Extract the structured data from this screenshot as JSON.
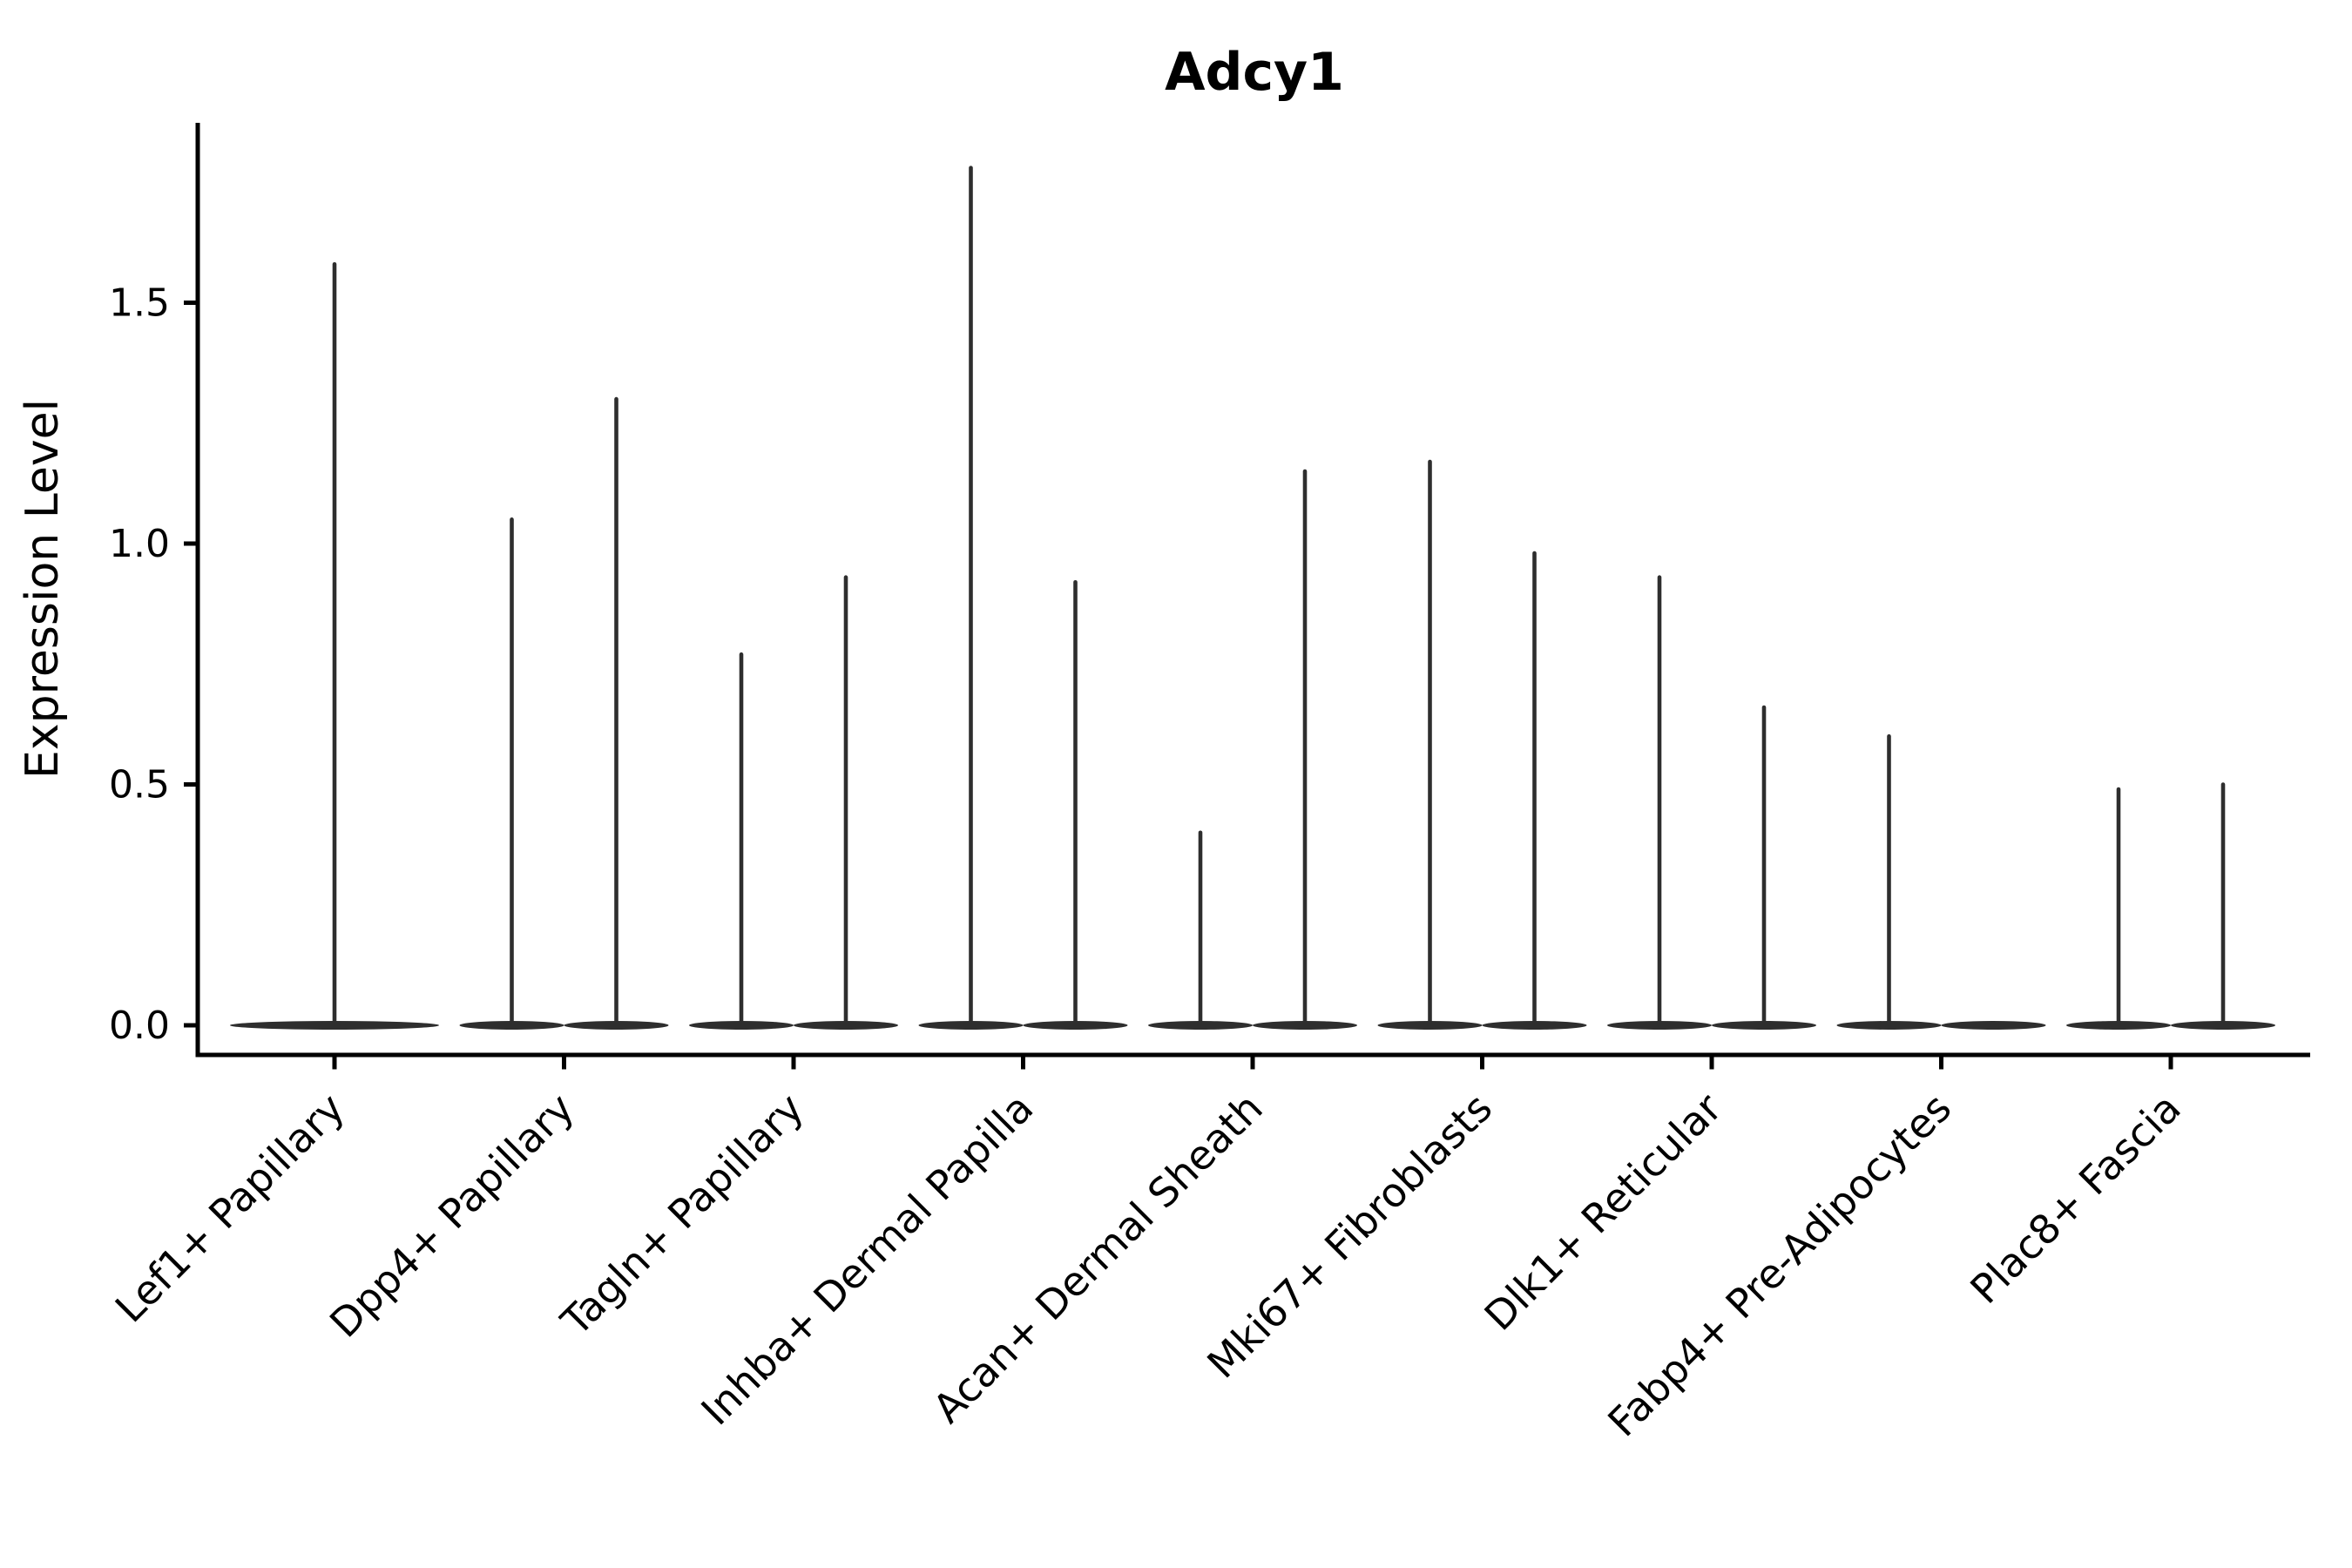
{
  "chart_data": {
    "type": "violin",
    "title": "Adcy1",
    "xlabel": "",
    "ylabel": "Expression Level",
    "yticks": [
      0.0,
      0.5,
      1.0,
      1.5
    ],
    "ytick_labels": [
      "0.0",
      "0.5",
      "1.0",
      "1.5"
    ],
    "ylim": [
      -0.06,
      1.87
    ],
    "grid": false,
    "legend": null,
    "x_tick_rotation": 45,
    "colors": {
      "violin": "#2e2e2e",
      "axis": "#000000",
      "background": "#ffffff"
    },
    "categories": [
      "Lef1+ Papillary",
      "Dpp4+ Papillary",
      "Tagln+ Papillary",
      "Inhba+ Dermal Papilla",
      "Acan+ Dermal Sheath",
      "Mki67+ Fibroblasts",
      "Dlk1+ Reticular",
      "Fabp4+ Pre-Adipocytes",
      "Plac8+ Fascia"
    ],
    "series": [
      {
        "category": "Lef1+ Papillary",
        "violins": [
          {
            "position": "center",
            "span": "full",
            "peak": 1.58
          }
        ]
      },
      {
        "category": "Dpp4+ Papillary",
        "violins": [
          {
            "position": "left",
            "span": "half",
            "peak": 1.05
          },
          {
            "position": "right",
            "span": "half",
            "peak": 1.3
          }
        ]
      },
      {
        "category": "Tagln+ Papillary",
        "violins": [
          {
            "position": "left",
            "span": "half",
            "peak": 0.77
          },
          {
            "position": "right",
            "span": "half",
            "peak": 0.93
          }
        ]
      },
      {
        "category": "Inhba+ Dermal Papilla",
        "violins": [
          {
            "position": "left",
            "span": "half",
            "peak": 1.78
          },
          {
            "position": "right",
            "span": "half",
            "peak": 0.92
          }
        ]
      },
      {
        "category": "Acan+ Dermal Sheath",
        "violins": [
          {
            "position": "left",
            "span": "half",
            "peak": 0.4
          },
          {
            "position": "right",
            "span": "half",
            "peak": 1.15
          }
        ]
      },
      {
        "category": "Mki67+ Fibroblasts",
        "violins": [
          {
            "position": "left",
            "span": "half",
            "peak": 1.17
          },
          {
            "position": "right",
            "span": "half",
            "peak": 0.98
          }
        ]
      },
      {
        "category": "Dlk1+ Reticular",
        "violins": [
          {
            "position": "left",
            "span": "half",
            "peak": 0.93
          },
          {
            "position": "right",
            "span": "half",
            "peak": 0.66
          }
        ]
      },
      {
        "category": "Fabp4+ Pre-Adipocytes",
        "violins": [
          {
            "position": "left",
            "span": "half",
            "peak": 0.6
          },
          {
            "position": "right",
            "span": "half",
            "peak": 0.0
          }
        ]
      },
      {
        "category": "Plac8+ Fascia",
        "violins": [
          {
            "position": "left",
            "span": "half",
            "peak": 0.49
          },
          {
            "position": "right",
            "span": "half",
            "peak": 0.5
          }
        ]
      }
    ],
    "notes": "Each violin is flat at expression 0 with a thin vertical spike up to its maximum expression value; peak values in Expression Level units."
  }
}
